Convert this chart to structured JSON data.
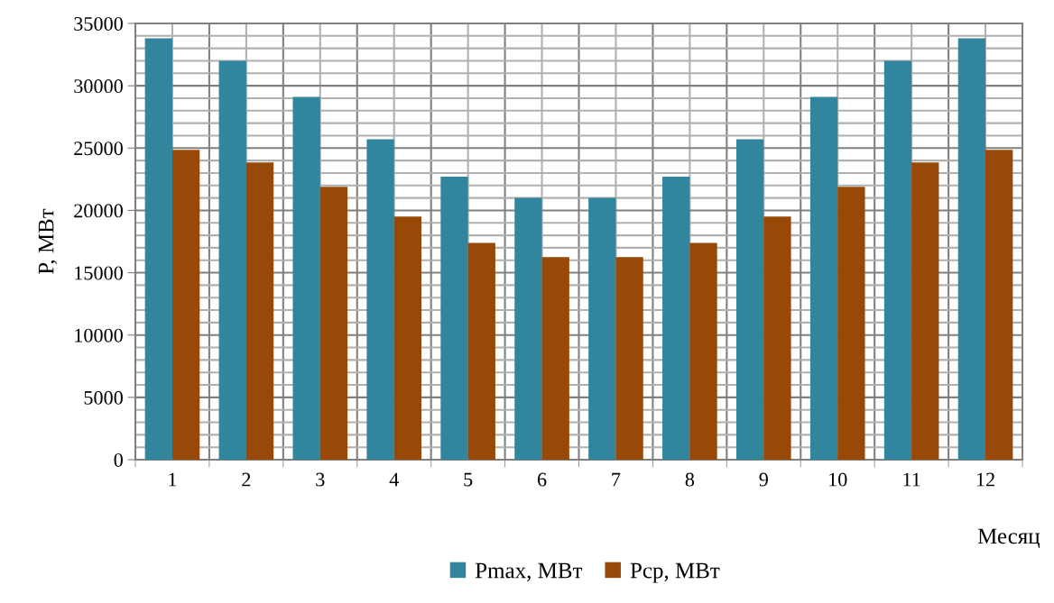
{
  "chart_data": {
    "type": "bar",
    "xlabel": "Месяц",
    "ylabel": "P, МВт",
    "categories": [
      "1",
      "2",
      "3",
      "4",
      "5",
      "6",
      "7",
      "8",
      "9",
      "10",
      "11",
      "12"
    ],
    "series": [
      {
        "name": "Pmax, МВт",
        "color": "#31859c",
        "values": [
          33800,
          32000,
          29100,
          25700,
          22700,
          21000,
          21000,
          22700,
          25700,
          29100,
          32000,
          33800
        ]
      },
      {
        "name": "Pcp, МВт",
        "color": "#984807",
        "values": [
          24850,
          23850,
          21900,
          19500,
          17400,
          16250,
          16250,
          17400,
          19500,
          21900,
          23850,
          24850
        ]
      }
    ],
    "ylim": [
      0,
      35000
    ],
    "yticks": [
      0,
      5000,
      10000,
      15000,
      20000,
      25000,
      30000,
      35000
    ],
    "grid": true,
    "legend": "bottom"
  }
}
